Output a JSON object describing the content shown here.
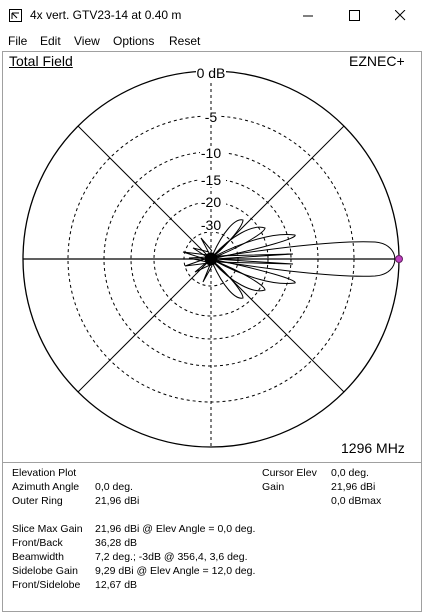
{
  "window": {
    "title": "4x vert. GTV23-14 at 0.40 m",
    "buttons": {
      "minimize": "minimize-icon",
      "maximize": "maximize-icon",
      "close": "close-icon"
    }
  },
  "menu": [
    "File",
    "Edit",
    "View",
    "Options",
    "Reset"
  ],
  "plot": {
    "field_label": "Total Field",
    "brand": "EZNEC+",
    "frequency": "1296 MHz",
    "ring_labels": [
      "0 dB",
      "-5",
      "-10",
      "-15",
      "-20",
      "-30"
    ],
    "colors": {
      "pattern": "#000000",
      "cursor_dot": "#c040c0",
      "grid": "#000000"
    }
  },
  "info": {
    "elevation_plot": "Elevation Plot",
    "azimuth_angle_label": "Azimuth Angle",
    "azimuth_angle_value": "0,0 deg.",
    "outer_ring_label": "Outer Ring",
    "outer_ring_value": "21,96 dBi",
    "cursor_elev_label": "Cursor Elev",
    "cursor_elev_value": "0,0 deg.",
    "gain_label": "Gain",
    "gain_value_dbi": "21,96 dBi",
    "gain_value_dbmax": "0,0 dBmax",
    "slice_max_gain_label": "Slice Max Gain",
    "slice_max_gain_value": "21,96 dBi @ Elev Angle = 0,0 deg.",
    "front_back_label": "Front/Back",
    "front_back_value": "36,28 dB",
    "beamwidth_label": "Beamwidth",
    "beamwidth_value": "7,2 deg.; -3dB @ 356,4, 3,6 deg.",
    "sidelobe_gain_label": "Sidelobe Gain",
    "sidelobe_gain_value": "9,29 dBi @ Elev Angle = 12,0 deg.",
    "front_sidelobe_label": "Front/Sidelobe",
    "front_sidelobe_value": "12,67 dB"
  }
}
